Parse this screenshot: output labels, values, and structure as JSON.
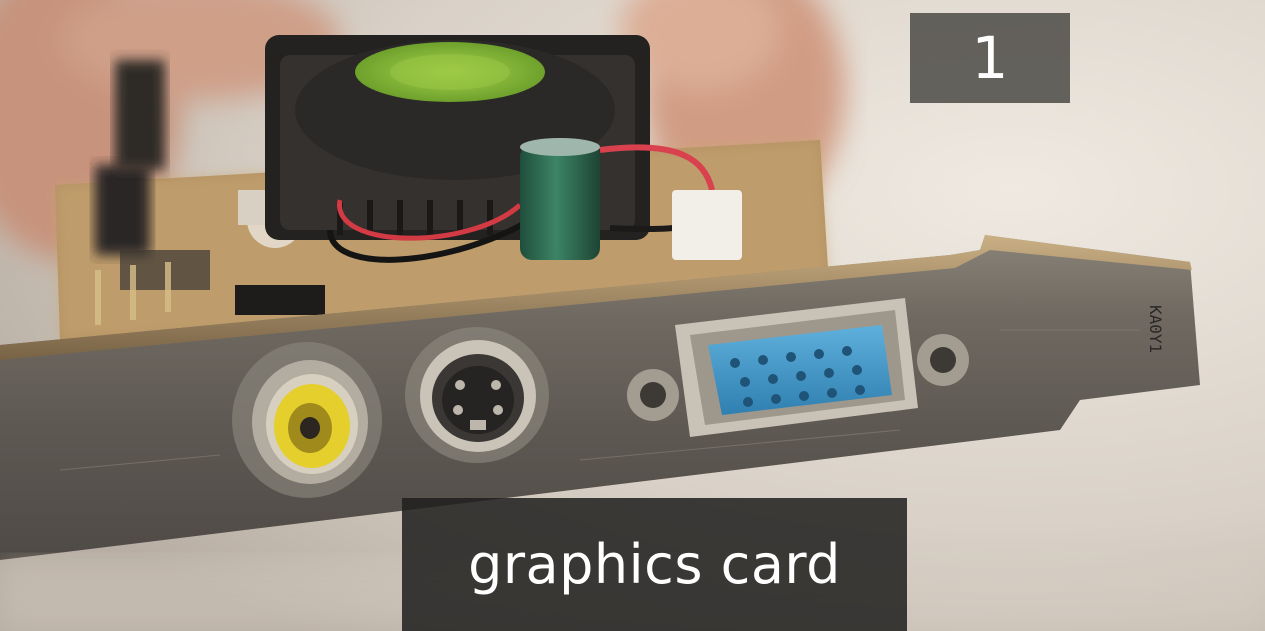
{
  "overlay": {
    "step_number": "1",
    "caption": "graphics card"
  },
  "bracket_marking": "KA0Y1",
  "ports": [
    "composite-rca-port",
    "s-video-port",
    "vga-port"
  ],
  "colors": {
    "caption_bg": "#201f1e",
    "badge_bg": "#46443f",
    "vga_blue": "#3f95c6",
    "rca_yellow": "#e5cf2c",
    "fan_green": "#8bbf3a",
    "capacitor_green": "#2f6e55",
    "pcb_gold": "#b8955d"
  }
}
